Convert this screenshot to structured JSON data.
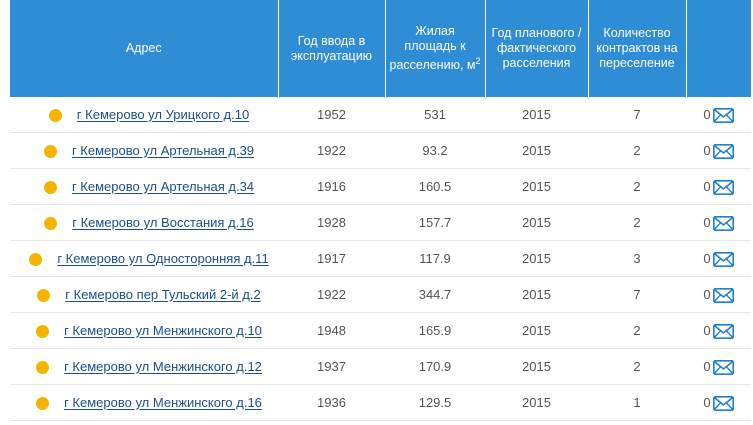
{
  "columns": {
    "address": "Адрес",
    "year_built": "Год ввода в эксплуатацию",
    "area": "Жилая площадь к расселению, м",
    "area_sup": "2",
    "resettle_year": "Год планового / фактического расселения",
    "contracts": "Количество контрактов на переселение",
    "messages": ""
  },
  "status_color": "#f4b400",
  "accent_color": "#2f8dd6",
  "icon": "envelope-icon",
  "rows": [
    {
      "address": "г Кемерово ул Урицкого д.10",
      "year": "1952",
      "area": "531",
      "resettle": "2015",
      "contracts": "7",
      "messages": "0"
    },
    {
      "address": "г Кемерово ул Артельная д.39",
      "year": "1922",
      "area": "93.2",
      "resettle": "2015",
      "contracts": "2",
      "messages": "0"
    },
    {
      "address": "г Кемерово ул Артельная д.34",
      "year": "1916",
      "area": "160.5",
      "resettle": "2015",
      "contracts": "2",
      "messages": "0"
    },
    {
      "address": "г Кемерово ул Восстания д.16",
      "year": "1928",
      "area": "157.7",
      "resettle": "2015",
      "contracts": "2",
      "messages": "0"
    },
    {
      "address": "г Кемерово ул Односторонняя д.11",
      "year": "1917",
      "area": "117.9",
      "resettle": "2015",
      "contracts": "3",
      "messages": "0"
    },
    {
      "address": "г Кемерово пер Тульский 2-й д.2",
      "year": "1922",
      "area": "344.7",
      "resettle": "2015",
      "contracts": "7",
      "messages": "0"
    },
    {
      "address": "г Кемерово ул Менжинского д.10",
      "year": "1948",
      "area": "165.9",
      "resettle": "2015",
      "contracts": "2",
      "messages": "0"
    },
    {
      "address": "г Кемерово ул Менжинского д.12",
      "year": "1937",
      "area": "170.9",
      "resettle": "2015",
      "contracts": "2",
      "messages": "0"
    },
    {
      "address": "г Кемерово ул Менжинского д.16",
      "year": "1936",
      "area": "129.5",
      "resettle": "2015",
      "contracts": "1",
      "messages": "0"
    }
  ]
}
